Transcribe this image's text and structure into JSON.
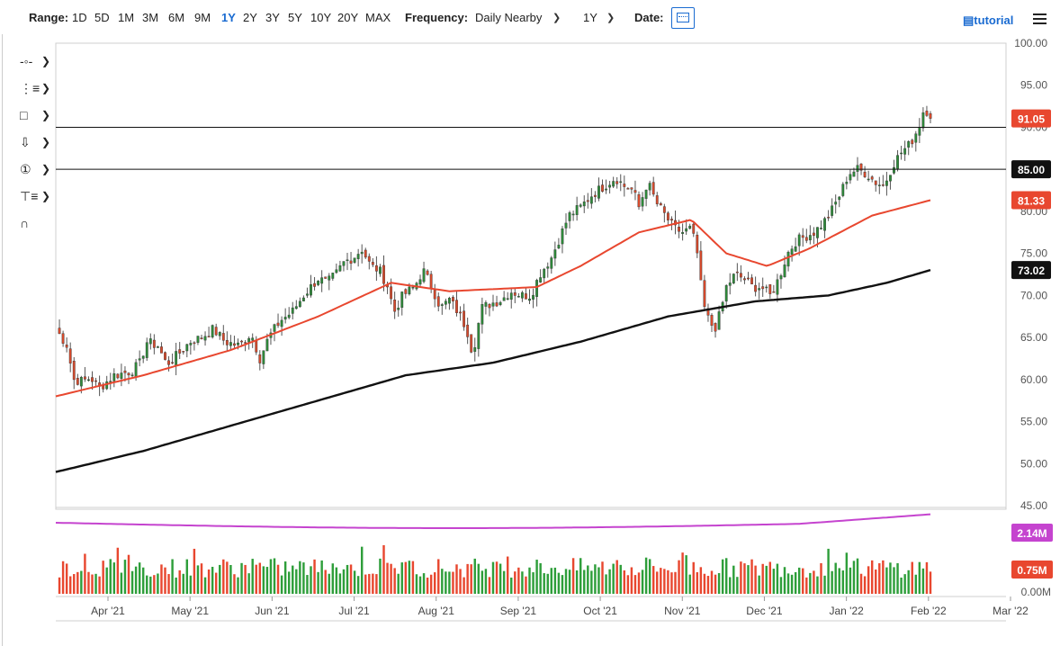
{
  "toolbar": {
    "range_label": "Range:",
    "ranges": [
      "1D",
      "5D",
      "1M",
      "3M",
      "6M",
      "9M",
      "1Y",
      "2Y",
      "3Y",
      "5Y",
      "10Y",
      "20Y",
      "MAX"
    ],
    "active_range": "1Y",
    "frequency_label": "Frequency:",
    "frequency_value": "Daily Nearby",
    "period_value": "1Y",
    "date_label": "Date:",
    "tutorial_label": "tutorial"
  },
  "tools": [
    "crosshair-icon",
    "draw-list-icon",
    "rectangle-icon",
    "arrow-down-icon",
    "circled-one-icon",
    "fib-tool-icon",
    "magnet-icon"
  ],
  "chart_data": {
    "type": "candlestick",
    "price_axis": {
      "min": 45,
      "max": 100,
      "ticks": [
        "100.00",
        "95.00",
        "90.00",
        "85.00",
        "80.00",
        "75.00",
        "70.00",
        "65.00",
        "60.00",
        "55.00",
        "50.00",
        "45.00"
      ]
    },
    "volume_axis": {
      "ticks": [
        "2.14M",
        "0.75M",
        "0.00M"
      ]
    },
    "x_axis_labels": [
      "Apr '21",
      "May '21",
      "Jun '21",
      "Jul '21",
      "Aug '21",
      "Sep '21",
      "Oct '21",
      "Nov '21",
      "Dec '21",
      "Jan '22",
      "Feb '22",
      "Mar '22"
    ],
    "horizontal_lines": [
      90.0,
      85.0
    ],
    "price_badges": [
      {
        "label": "91.05",
        "value": 91.05,
        "color": "#e8472f"
      },
      {
        "label": "85.00",
        "value": 85.0,
        "color": "#111111"
      },
      {
        "label": "81.33",
        "value": 81.33,
        "color": "#e8472f"
      },
      {
        "label": "73.02",
        "value": 73.02,
        "color": "#111111"
      }
    ],
    "volume_badges": [
      {
        "label": "2.14M",
        "color": "#c544cf"
      },
      {
        "label": "0.75M",
        "color": "#e8472f"
      }
    ],
    "close_path": [
      [
        0,
        66.0
      ],
      [
        8,
        64.0
      ],
      [
        12,
        60.0
      ],
      [
        18,
        59.8
      ],
      [
        24,
        60.2
      ],
      [
        30,
        59.0
      ],
      [
        40,
        60.5
      ],
      [
        52,
        61.0
      ],
      [
        58,
        62.0
      ],
      [
        62,
        64.5
      ],
      [
        70,
        64.0
      ],
      [
        76,
        61.8
      ],
      [
        84,
        63.0
      ],
      [
        92,
        64.5
      ],
      [
        100,
        65.0
      ],
      [
        108,
        66.0
      ],
      [
        116,
        64.5
      ],
      [
        126,
        64.0
      ],
      [
        134,
        65.5
      ],
      [
        140,
        62.5
      ],
      [
        146,
        65.0
      ],
      [
        154,
        67.0
      ],
      [
        162,
        68.0
      ],
      [
        170,
        70.0
      ],
      [
        180,
        72.0
      ],
      [
        186,
        71.5
      ],
      [
        192,
        72.5
      ],
      [
        198,
        74.0
      ],
      [
        204,
        74.5
      ],
      [
        210,
        75.5
      ],
      [
        216,
        73.5
      ],
      [
        222,
        73.0
      ],
      [
        228,
        71.0
      ],
      [
        232,
        68.0
      ],
      [
        238,
        70.0
      ],
      [
        246,
        71.0
      ],
      [
        252,
        73.0
      ],
      [
        258,
        71.0
      ],
      [
        264,
        68.5
      ],
      [
        270,
        69.5
      ],
      [
        276,
        68.0
      ],
      [
        282,
        66.0
      ],
      [
        286,
        63.0
      ],
      [
        292,
        68.5
      ],
      [
        298,
        69.0
      ],
      [
        306,
        69.5
      ],
      [
        312,
        70.5
      ],
      [
        320,
        70.0
      ],
      [
        326,
        70.0
      ],
      [
        332,
        72.5
      ],
      [
        340,
        74.5
      ],
      [
        346,
        77.0
      ],
      [
        352,
        79.5
      ],
      [
        360,
        80.5
      ],
      [
        368,
        82.0
      ],
      [
        376,
        83.0
      ],
      [
        384,
        84.0
      ],
      [
        390,
        83.0
      ],
      [
        396,
        82.5
      ],
      [
        400,
        80.5
      ],
      [
        406,
        83.5
      ],
      [
        412,
        81.0
      ],
      [
        418,
        79.5
      ],
      [
        424,
        78.0
      ],
      [
        430,
        77.5
      ],
      [
        436,
        78.0
      ],
      [
        440,
        75.0
      ],
      [
        444,
        69.0
      ],
      [
        448,
        67.0
      ],
      [
        452,
        66.0
      ],
      [
        456,
        68.0
      ],
      [
        460,
        71.0
      ],
      [
        466,
        72.5
      ],
      [
        472,
        72.0
      ],
      [
        478,
        71.0
      ],
      [
        484,
        71.0
      ],
      [
        490,
        70.0
      ],
      [
        496,
        72.0
      ],
      [
        502,
        75.0
      ],
      [
        508,
        76.5
      ],
      [
        514,
        77.0
      ],
      [
        520,
        77.5
      ],
      [
        526,
        78.5
      ],
      [
        532,
        80.0
      ],
      [
        538,
        82.0
      ],
      [
        544,
        84.5
      ],
      [
        550,
        85.0
      ],
      [
        556,
        84.5
      ],
      [
        562,
        83.5
      ],
      [
        568,
        83.0
      ],
      [
        574,
        85.5
      ],
      [
        580,
        87.0
      ],
      [
        586,
        88.0
      ],
      [
        592,
        90.0
      ],
      [
        596,
        92.5
      ],
      [
        600,
        91.05
      ]
    ],
    "series": [
      {
        "name": "price",
        "color": "#2e7d32"
      },
      {
        "name": "moving-average-50",
        "color": "#e8472f",
        "points": [
          [
            0,
            58.0
          ],
          [
            60,
            60.5
          ],
          [
            120,
            63.5
          ],
          [
            180,
            67.5
          ],
          [
            230,
            71.5
          ],
          [
            270,
            70.5
          ],
          [
            330,
            71.0
          ],
          [
            360,
            73.5
          ],
          [
            400,
            77.5
          ],
          [
            436,
            79.0
          ],
          [
            460,
            75.0
          ],
          [
            488,
            73.5
          ],
          [
            516,
            75.5
          ],
          [
            560,
            79.5
          ],
          [
            600,
            81.33
          ]
        ]
      },
      {
        "name": "moving-average-200",
        "color": "#111111",
        "points": [
          [
            0,
            49.0
          ],
          [
            60,
            51.5
          ],
          [
            120,
            54.5
          ],
          [
            180,
            57.5
          ],
          [
            240,
            60.5
          ],
          [
            300,
            62.0
          ],
          [
            360,
            64.5
          ],
          [
            420,
            67.5
          ],
          [
            480,
            69.3
          ],
          [
            530,
            70.0
          ],
          [
            570,
            71.5
          ],
          [
            600,
            73.02
          ]
        ]
      },
      {
        "name": "volume-average",
        "color": "#c544cf"
      }
    ],
    "grid": false
  }
}
